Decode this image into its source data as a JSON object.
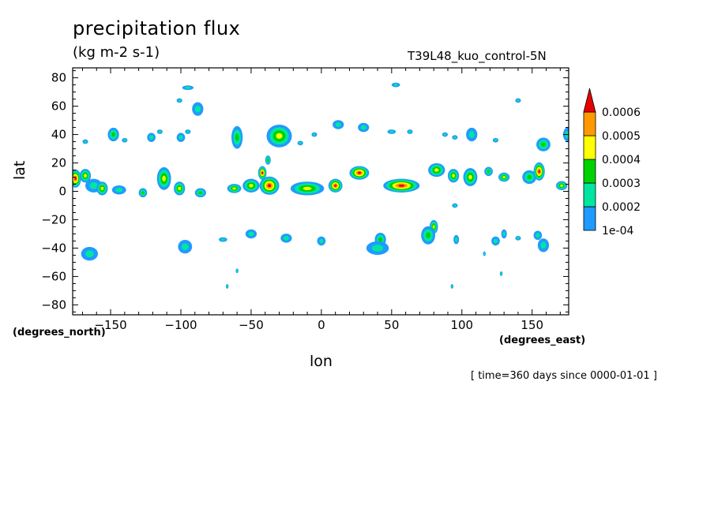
{
  "chart_data": {
    "type": "heatmap",
    "title": "precipitation flux",
    "units": "(kg m-2 s-1)",
    "dataset": "T39L48_kuo_control-5N",
    "xlabel": "lon",
    "ylabel": "lat",
    "x_units_label": "(degrees_north)",
    "y_units_label": "(degrees_east)",
    "footnote": "[ time=360 days since 0000-01-01 ]",
    "xlim": [
      -177,
      176
    ],
    "ylim": [
      -87,
      87
    ],
    "x_ticks": [
      "-150",
      "-100",
      "-50",
      "0",
      "50",
      "100",
      "150"
    ],
    "x_tick_values": [
      -150,
      -100,
      -50,
      0,
      50,
      100,
      150
    ],
    "y_ticks": [
      "80",
      "60",
      "40",
      "20",
      "0",
      "-20",
      "-40",
      "-60",
      "-80"
    ],
    "y_tick_values": [
      80,
      60,
      40,
      20,
      0,
      -20,
      -40,
      -60,
      -80
    ],
    "colorbar": {
      "levels": [
        "1e-04",
        "0.0002",
        "0.0003",
        "0.0004",
        "0.0005",
        "0.0006"
      ],
      "colors": [
        "#1f9bff",
        "#00e6a0",
        "#00d200",
        "#ffff00",
        "#ff9900",
        "#e60000"
      ]
    },
    "features": [
      {
        "lon": -175,
        "lat": 9,
        "rx": 4,
        "ry": 4,
        "level": 5
      },
      {
        "lon": -168,
        "lat": 11,
        "rx": 4,
        "ry": 3,
        "level": 3
      },
      {
        "lon": -162,
        "lat": 4,
        "rx": 6,
        "ry": 3,
        "level": 1
      },
      {
        "lon": -156,
        "lat": 2,
        "rx": 4,
        "ry": 3,
        "level": 3
      },
      {
        "lon": -144,
        "lat": 1,
        "rx": 5,
        "ry": 2,
        "level": 1
      },
      {
        "lon": -127,
        "lat": -1,
        "rx": 3,
        "ry": 2,
        "level": 2
      },
      {
        "lon": -112,
        "lat": 9,
        "rx": 5,
        "ry": 5,
        "level": 3
      },
      {
        "lon": -101,
        "lat": 2,
        "rx": 4,
        "ry": 3,
        "level": 3
      },
      {
        "lon": -86,
        "lat": -1,
        "rx": 4,
        "ry": 2,
        "level": 2
      },
      {
        "lon": -62,
        "lat": 2,
        "rx": 5,
        "ry": 2,
        "level": 3
      },
      {
        "lon": -50,
        "lat": 4,
        "rx": 6,
        "ry": 3,
        "level": 3
      },
      {
        "lon": -37,
        "lat": 4,
        "rx": 7,
        "ry": 4,
        "level": 5
      },
      {
        "lon": -42,
        "lat": 13,
        "rx": 3,
        "ry": 3,
        "level": 5
      },
      {
        "lon": -38,
        "lat": 22,
        "rx": 2,
        "ry": 2,
        "level": 2
      },
      {
        "lon": -10,
        "lat": 2,
        "rx": 12,
        "ry": 3,
        "level": 3
      },
      {
        "lon": 10,
        "lat": 4,
        "rx": 5,
        "ry": 3,
        "level": 5
      },
      {
        "lon": 27,
        "lat": 13,
        "rx": 7,
        "ry": 3,
        "level": 5
      },
      {
        "lon": 57,
        "lat": 4,
        "rx": 13,
        "ry": 3,
        "level": 5
      },
      {
        "lon": 82,
        "lat": 15,
        "rx": 6,
        "ry": 3,
        "level": 3
      },
      {
        "lon": 94,
        "lat": 11,
        "rx": 4,
        "ry": 3,
        "level": 3
      },
      {
        "lon": 106,
        "lat": 10,
        "rx": 5,
        "ry": 4,
        "level": 3
      },
      {
        "lon": 119,
        "lat": 14,
        "rx": 3,
        "ry": 2,
        "level": 2
      },
      {
        "lon": 130,
        "lat": 10,
        "rx": 4,
        "ry": 2,
        "level": 3
      },
      {
        "lon": 148,
        "lat": 10,
        "rx": 5,
        "ry": 3,
        "level": 2
      },
      {
        "lon": 155,
        "lat": 14,
        "rx": 4,
        "ry": 4,
        "level": 5
      },
      {
        "lon": 171,
        "lat": 4,
        "rx": 4,
        "ry": 2,
        "level": 3
      },
      {
        "lon": -121,
        "lat": 38,
        "rx": 3,
        "ry": 2,
        "level": 1
      },
      {
        "lon": -148,
        "lat": 40,
        "rx": 4,
        "ry": 3,
        "level": 2
      },
      {
        "lon": -100,
        "lat": 38,
        "rx": 3,
        "ry": 2,
        "level": 1
      },
      {
        "lon": -60,
        "lat": 38,
        "rx": 4,
        "ry": 5,
        "level": 2
      },
      {
        "lon": -30,
        "lat": 39,
        "rx": 9,
        "ry": 5,
        "level": 3
      },
      {
        "lon": 12,
        "lat": 47,
        "rx": 4,
        "ry": 2,
        "level": 1
      },
      {
        "lon": 30,
        "lat": 45,
        "rx": 4,
        "ry": 2,
        "level": 1
      },
      {
        "lon": 107,
        "lat": 40,
        "rx": 4,
        "ry": 3,
        "level": 1
      },
      {
        "lon": 158,
        "lat": 33,
        "rx": 5,
        "ry": 3,
        "level": 2
      },
      {
        "lon": -88,
        "lat": 58,
        "rx": 4,
        "ry": 3,
        "level": 1
      },
      {
        "lon": 175,
        "lat": 40,
        "rx": 3,
        "ry": 3,
        "level": 1
      },
      {
        "lon": -165,
        "lat": -44,
        "rx": 6,
        "ry": 3,
        "level": 1
      },
      {
        "lon": -97,
        "lat": -39,
        "rx": 5,
        "ry": 3,
        "level": 1
      },
      {
        "lon": 42,
        "lat": -34,
        "rx": 4,
        "ry": 3,
        "level": 2
      },
      {
        "lon": 40,
        "lat": -40,
        "rx": 8,
        "ry": 3,
        "level": 1
      },
      {
        "lon": 80,
        "lat": -25,
        "rx": 3,
        "ry": 3,
        "level": 3
      },
      {
        "lon": 76,
        "lat": -31,
        "rx": 5,
        "ry": 4,
        "level": 2
      },
      {
        "lon": 158,
        "lat": -38,
        "rx": 4,
        "ry": 3,
        "level": 1
      },
      {
        "lon": 154,
        "lat": -31,
        "rx": 3,
        "ry": 2,
        "level": 1
      },
      {
        "lon": -50,
        "lat": -30,
        "rx": 4,
        "ry": 2,
        "level": 1
      },
      {
        "lon": -25,
        "lat": -33,
        "rx": 4,
        "ry": 2,
        "level": 1
      },
      {
        "lon": 0,
        "lat": -35,
        "rx": 3,
        "ry": 2,
        "level": 1
      },
      {
        "lon": 124,
        "lat": -35,
        "rx": 3,
        "ry": 2,
        "level": 1
      },
      {
        "lon": 96,
        "lat": -34,
        "rx": 2,
        "ry": 2,
        "level": 1
      },
      {
        "lon": -70,
        "lat": -34,
        "rx": 3,
        "ry": 1,
        "level": 1
      },
      {
        "lon": 130,
        "lat": -30,
        "rx": 2,
        "ry": 2,
        "level": 1
      },
      {
        "lon": 140,
        "lat": -33,
        "rx": 2,
        "ry": 1,
        "level": 1
      },
      {
        "lon": -168,
        "lat": 35,
        "rx": 2,
        "ry": 1,
        "level": 1
      },
      {
        "lon": -140,
        "lat": 36,
        "rx": 2,
        "ry": 1,
        "level": 1
      },
      {
        "lon": -115,
        "lat": 42,
        "rx": 2,
        "ry": 1,
        "level": 1
      },
      {
        "lon": -95,
        "lat": 42,
        "rx": 2,
        "ry": 1,
        "level": 1
      },
      {
        "lon": 50,
        "lat": 42,
        "rx": 3,
        "ry": 1,
        "level": 1
      },
      {
        "lon": 63,
        "lat": 42,
        "rx": 2,
        "ry": 1,
        "level": 1
      },
      {
        "lon": 88,
        "lat": 40,
        "rx": 2,
        "ry": 1,
        "level": 1
      },
      {
        "lon": 95,
        "lat": 38,
        "rx": 2,
        "ry": 1,
        "level": 1
      },
      {
        "lon": 124,
        "lat": 36,
        "rx": 2,
        "ry": 1,
        "level": 1
      },
      {
        "lon": -5,
        "lat": 40,
        "rx": 2,
        "ry": 1,
        "level": 1
      },
      {
        "lon": -15,
        "lat": 34,
        "rx": 2,
        "ry": 1,
        "level": 1
      },
      {
        "lon": -95,
        "lat": 73,
        "rx": 4,
        "ry": 1,
        "level": 1
      },
      {
        "lon": 53,
        "lat": 75,
        "rx": 3,
        "ry": 1,
        "level": 1
      },
      {
        "lon": -101,
        "lat": 64,
        "rx": 2,
        "ry": 1,
        "level": 1
      },
      {
        "lon": 140,
        "lat": 64,
        "rx": 2,
        "ry": 1,
        "level": 1
      },
      {
        "lon": -67,
        "lat": -67,
        "rx": 1,
        "ry": 1,
        "level": 1
      },
      {
        "lon": -60,
        "lat": -56,
        "rx": 1,
        "ry": 1,
        "level": 1
      },
      {
        "lon": 93,
        "lat": -67,
        "rx": 1,
        "ry": 1,
        "level": 1
      },
      {
        "lon": 95,
        "lat": -10,
        "rx": 2,
        "ry": 1,
        "level": 1
      },
      {
        "lon": 128,
        "lat": -58,
        "rx": 1,
        "ry": 1,
        "level": 1
      },
      {
        "lon": 116,
        "lat": -44,
        "rx": 1,
        "ry": 1,
        "level": 1
      }
    ]
  }
}
